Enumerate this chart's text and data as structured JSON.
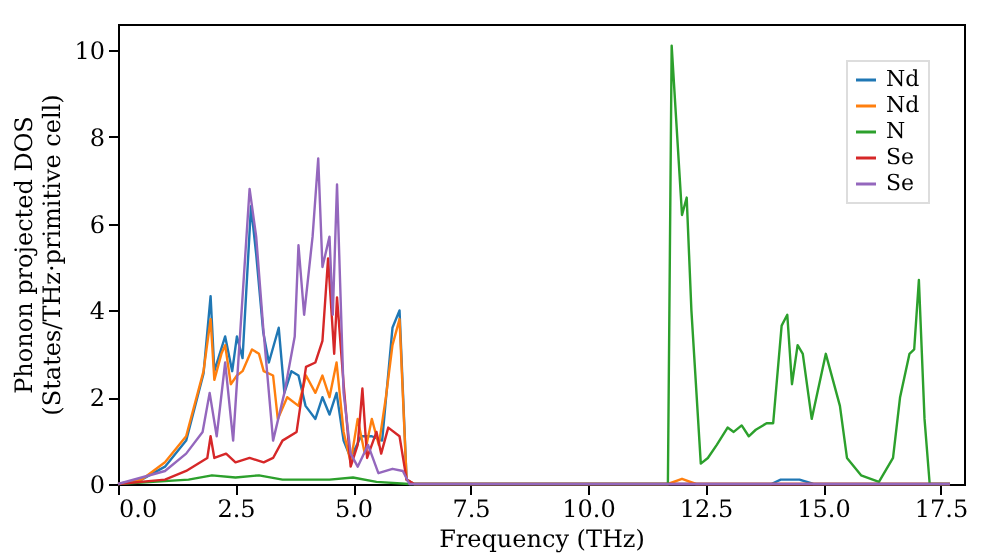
{
  "chart_data": {
    "type": "line",
    "xlabel": "Frequency (THz)",
    "ylabel": "Phonon projected DOS\n(States/THz·primitive cell)",
    "xlim": [
      0,
      18
    ],
    "ylim": [
      0,
      10.6
    ],
    "xticks": [
      {
        "value": 0,
        "label": "0.0"
      },
      {
        "value": 2.5,
        "label": "2.5"
      },
      {
        "value": 5,
        "label": "5.0"
      },
      {
        "value": 7.5,
        "label": "7.5"
      },
      {
        "value": 10,
        "label": "10.0"
      },
      {
        "value": 12.5,
        "label": "12.5"
      },
      {
        "value": 15,
        "label": "15.0"
      },
      {
        "value": 17.5,
        "label": "17.5"
      }
    ],
    "yticks": [
      0,
      2,
      4,
      6,
      8,
      10
    ],
    "grid": false,
    "legend": "top right",
    "line_style": "solid",
    "marker": "none",
    "series": [
      {
        "name": "Nd",
        "color": "#1f77b4",
        "x": [
          0,
          0.5,
          1.0,
          1.45,
          1.82,
          1.97,
          2.05,
          2.28,
          2.43,
          2.53,
          2.65,
          2.83,
          2.94,
          3.09,
          3.21,
          3.42,
          3.54,
          3.69,
          3.84,
          3.99,
          4.2,
          4.35,
          4.5,
          4.65,
          4.8,
          4.95,
          5.17,
          5.4,
          5.62,
          5.84,
          5.99,
          6.14,
          6.3,
          11.7,
          13.9,
          14.1,
          14.5,
          14.8,
          17.7
        ],
        "values": [
          0,
          0.1,
          0.4,
          1.0,
          2.55,
          4.33,
          2.6,
          3.4,
          2.6,
          3.4,
          2.9,
          6.4,
          5.3,
          3.5,
          2.8,
          3.6,
          2.1,
          2.6,
          2.5,
          1.8,
          1.5,
          2.0,
          1.6,
          2.1,
          1.0,
          0.6,
          1.1,
          1.1,
          1.0,
          3.6,
          4.0,
          0.1,
          0,
          0,
          0,
          0.1,
          0.1,
          0,
          0
        ]
      },
      {
        "name": "Nd",
        "color": "#ff7f0e",
        "x": [
          0,
          0.5,
          1.0,
          1.45,
          1.82,
          1.97,
          2.05,
          2.2,
          2.28,
          2.4,
          2.53,
          2.65,
          2.85,
          3.0,
          3.1,
          3.3,
          3.4,
          3.6,
          3.84,
          4.0,
          4.2,
          4.35,
          4.5,
          4.65,
          4.8,
          4.95,
          5.1,
          5.25,
          5.4,
          5.55,
          5.7,
          5.84,
          5.99,
          6.14,
          6.3,
          11.7,
          12.0,
          12.3,
          17.7
        ],
        "values": [
          0,
          0.1,
          0.5,
          1.1,
          2.6,
          3.8,
          2.4,
          3.0,
          3.2,
          2.3,
          2.5,
          2.6,
          3.1,
          3.0,
          2.6,
          2.5,
          1.5,
          2.0,
          1.8,
          2.5,
          2.1,
          2.5,
          2.0,
          2.8,
          1.2,
          0.5,
          1.5,
          0.7,
          1.5,
          0.9,
          2.0,
          3.2,
          3.8,
          0.1,
          0,
          0,
          0.12,
          0,
          0
        ]
      },
      {
        "name": "N",
        "color": "#2ca02c",
        "x": [
          0,
          1.5,
          2.0,
          2.5,
          3.0,
          3.5,
          4.5,
          5.0,
          5.5,
          6.2,
          11.7,
          11.78,
          12.0,
          12.1,
          12.2,
          12.4,
          12.55,
          12.74,
          12.97,
          13.1,
          13.27,
          13.42,
          13.57,
          13.8,
          13.94,
          14.12,
          14.24,
          14.34,
          14.46,
          14.57,
          14.76,
          15.06,
          15.36,
          15.51,
          15.81,
          16.19,
          16.49,
          16.64,
          16.84,
          16.94,
          17.04,
          17.16,
          17.27,
          17.7
        ],
        "values": [
          0,
          0.1,
          0.2,
          0.15,
          0.2,
          0.1,
          0.1,
          0.15,
          0.05,
          0,
          0,
          10.1,
          6.2,
          6.6,
          4.0,
          0.47,
          0.6,
          0.9,
          1.3,
          1.2,
          1.35,
          1.1,
          1.25,
          1.4,
          1.4,
          3.65,
          3.9,
          2.3,
          3.2,
          3.0,
          1.5,
          3.0,
          1.8,
          0.6,
          0.2,
          0.05,
          0.6,
          2.0,
          3.0,
          3.1,
          4.7,
          1.5,
          0,
          0
        ]
      },
      {
        "name": "Se",
        "color": "#d62728",
        "x": [
          0,
          1.0,
          1.45,
          1.9,
          1.97,
          2.05,
          2.3,
          2.5,
          2.8,
          3.1,
          3.3,
          3.5,
          3.8,
          4.0,
          4.2,
          4.35,
          4.47,
          4.6,
          4.66,
          4.8,
          4.95,
          5.1,
          5.2,
          5.3,
          5.5,
          5.6,
          5.75,
          5.99,
          6.14,
          6.3,
          17.7
        ],
        "values": [
          0,
          0.1,
          0.3,
          0.6,
          1.1,
          0.6,
          0.7,
          0.5,
          0.6,
          0.5,
          0.6,
          1.0,
          1.2,
          2.7,
          2.8,
          3.3,
          5.2,
          3.0,
          4.3,
          2.3,
          0.4,
          0.9,
          2.2,
          0.6,
          1.2,
          0.7,
          1.3,
          1.1,
          0.1,
          0,
          0
        ]
      },
      {
        "name": "Se",
        "color": "#9467bd",
        "x": [
          0,
          1.0,
          1.45,
          1.8,
          1.95,
          2.1,
          2.28,
          2.45,
          2.8,
          2.94,
          3.09,
          3.3,
          3.54,
          3.76,
          3.84,
          3.96,
          4.14,
          4.26,
          4.35,
          4.5,
          4.57,
          4.66,
          4.8,
          4.95,
          5.1,
          5.32,
          5.54,
          5.84,
          6.06,
          6.2,
          17.7
        ],
        "values": [
          0,
          0.3,
          0.7,
          1.2,
          2.1,
          1.1,
          2.8,
          1.0,
          6.8,
          5.7,
          3.6,
          1.0,
          2.1,
          3.4,
          5.5,
          3.9,
          5.7,
          7.5,
          5.0,
          5.7,
          3.9,
          6.9,
          2.1,
          0.7,
          0.4,
          0.9,
          0.25,
          0.35,
          0.3,
          0,
          0
        ]
      }
    ]
  }
}
